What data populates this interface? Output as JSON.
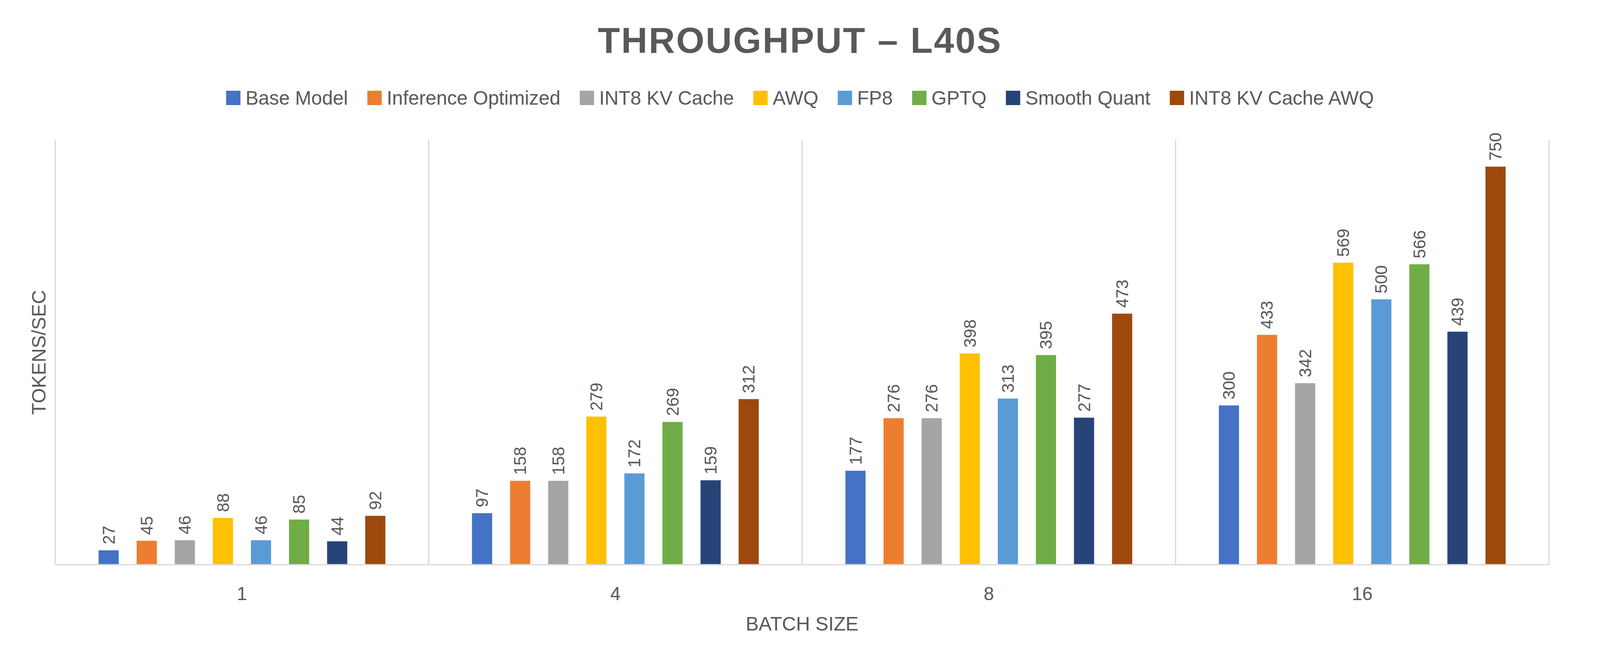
{
  "chart_data": {
    "type": "bar",
    "title": "THROUGHPUT – L40S",
    "x_label": "BATCH SIZE",
    "y_label": "TOKENS/SEC",
    "categories": [
      "1",
      "4",
      "8",
      "16"
    ],
    "series": [
      {
        "name": "Base Model",
        "color": "#4472c4",
        "values": [
          27,
          97,
          177,
          300
        ]
      },
      {
        "name": "Inference Optimized",
        "color": "#ed7d31",
        "values": [
          45,
          158,
          276,
          433
        ]
      },
      {
        "name": "INT8 KV Cache",
        "color": "#a5a5a5",
        "values": [
          46,
          158,
          276,
          342
        ]
      },
      {
        "name": "AWQ",
        "color": "#ffc000",
        "values": [
          88,
          279,
          398,
          569
        ]
      },
      {
        "name": "FP8",
        "color": "#5b9bd5",
        "values": [
          46,
          172,
          313,
          500
        ]
      },
      {
        "name": "GPTQ",
        "color": "#70ad47",
        "values": [
          85,
          269,
          395,
          566
        ]
      },
      {
        "name": "Smooth Quant",
        "color": "#264478",
        "values": [
          44,
          159,
          277,
          439
        ]
      },
      {
        "name": "INT8 KV Cache AWQ",
        "color": "#9e480e",
        "values": [
          92,
          312,
          473,
          750
        ]
      }
    ],
    "ylim": [
      0,
      800
    ],
    "grid": true,
    "legend": "top",
    "data_labels": true,
    "tick_labels": "x"
  }
}
